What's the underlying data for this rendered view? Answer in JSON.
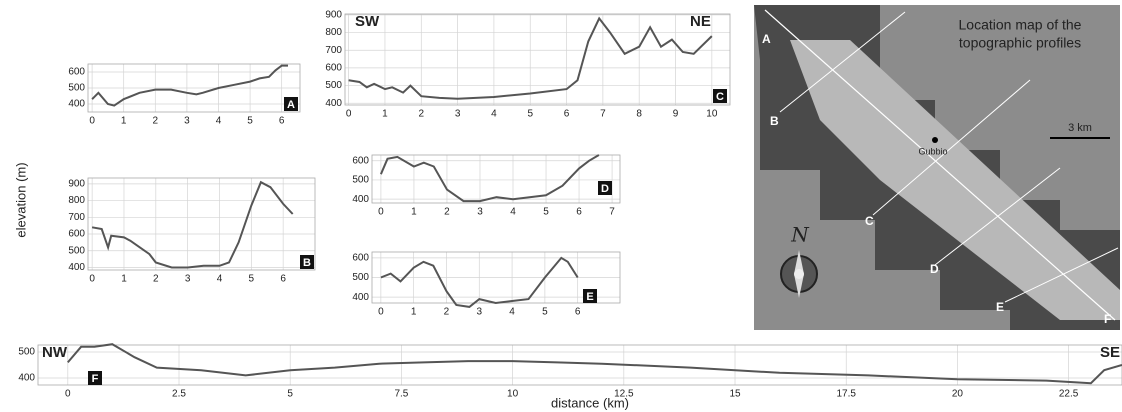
{
  "chart_data": [
    {
      "type": "line",
      "label": "A",
      "color": "#555555",
      "grid": true,
      "x": [
        0,
        0.2,
        0.5,
        0.7,
        1,
        1.5,
        2,
        2.5,
        3,
        3.3,
        3.5,
        4,
        4.5,
        5,
        5.3,
        5.6,
        5.8,
        6,
        6.2
      ],
      "values": [
        430,
        470,
        400,
        390,
        430,
        470,
        490,
        490,
        470,
        460,
        470,
        500,
        520,
        540,
        560,
        570,
        610,
        640,
        640
      ],
      "xlim": [
        -0.13,
        6.58
      ],
      "ylim": [
        350,
        650
      ],
      "xticks": [
        0,
        1,
        2,
        3,
        4,
        5,
        6
      ],
      "yticks": [
        400,
        500,
        600
      ]
    },
    {
      "type": "line",
      "label": "B",
      "color": "#555555",
      "grid": true,
      "x": [
        0,
        0.3,
        0.5,
        0.6,
        1,
        1.2,
        1.5,
        1.8,
        2,
        2.5,
        3,
        3.5,
        4,
        4.3,
        4.6,
        5,
        5.3,
        5.6,
        6,
        6.3
      ],
      "values": [
        640,
        630,
        520,
        590,
        580,
        560,
        520,
        480,
        430,
        400,
        400,
        410,
        410,
        430,
        550,
        770,
        910,
        880,
        780,
        720
      ],
      "xlim": [
        -0.13,
        7
      ],
      "ylim": [
        385,
        935
      ],
      "xticks": [
        0,
        1,
        2,
        3,
        4,
        5,
        6
      ],
      "yticks": [
        400,
        500,
        600,
        700,
        800,
        900
      ]
    },
    {
      "type": "line",
      "label": "C",
      "left_label": "SW",
      "right_label": "NE",
      "color": "#555555",
      "grid": true,
      "x": [
        0,
        0.3,
        0.5,
        0.7,
        1,
        1.2,
        1.5,
        1.7,
        2,
        2.5,
        3,
        4,
        5,
        6,
        6.3,
        6.6,
        6.9,
        7.2,
        7.6,
        8,
        8.3,
        8.6,
        8.9,
        9.2,
        9.5,
        10
      ],
      "values": [
        530,
        520,
        490,
        510,
        480,
        490,
        460,
        500,
        440,
        430,
        425,
        435,
        455,
        480,
        530,
        750,
        880,
        800,
        680,
        720,
        830,
        720,
        760,
        690,
        680,
        780
      ],
      "xlim": [
        -0.1,
        10.5
      ],
      "ylim": [
        390,
        905
      ],
      "xticks": [
        0,
        1,
        2,
        3,
        4,
        5,
        6,
        7,
        8,
        9,
        10
      ],
      "yticks": [
        400,
        500,
        600,
        700,
        800,
        900
      ]
    },
    {
      "type": "line",
      "label": "D",
      "color": "#555555",
      "grid": true,
      "x": [
        0,
        0.2,
        0.5,
        1,
        1.3,
        1.6,
        2,
        2.5,
        3,
        3.5,
        4,
        5,
        5.5,
        6,
        6.3,
        6.6
      ],
      "values": [
        530,
        610,
        620,
        570,
        590,
        570,
        450,
        390,
        390,
        410,
        400,
        420,
        470,
        560,
        600,
        630
      ],
      "xlim": [
        -0.27,
        7.24
      ],
      "ylim": [
        380,
        630
      ],
      "xticks": [
        0,
        1,
        2,
        3,
        4,
        5,
        6,
        7
      ],
      "yticks": [
        400,
        500,
        600
      ]
    },
    {
      "type": "line",
      "label": "E",
      "color": "#555555",
      "grid": true,
      "x": [
        0,
        0.3,
        0.6,
        1,
        1.3,
        1.6,
        2,
        2.3,
        2.7,
        3,
        3.5,
        4,
        4.5,
        5,
        5.5,
        5.7,
        6
      ],
      "values": [
        500,
        520,
        480,
        550,
        580,
        560,
        430,
        360,
        350,
        390,
        370,
        380,
        390,
        500,
        600,
        580,
        500
      ],
      "xlim": [
        -0.27,
        7.29
      ],
      "ylim": [
        370,
        630
      ],
      "xticks": [
        0,
        1,
        2,
        3,
        4,
        5,
        6
      ],
      "yticks": [
        400,
        500,
        600
      ]
    },
    {
      "type": "line",
      "label": "F",
      "left_label": "NW",
      "right_label": "SE",
      "color": "#555555",
      "grid": true,
      "x": [
        0,
        0.3,
        0.6,
        1,
        1.5,
        2,
        3,
        4,
        5,
        6,
        7,
        8,
        9,
        10,
        11,
        12,
        14,
        16,
        18,
        20,
        22,
        23,
        23.3,
        23.7
      ],
      "values": [
        460,
        520,
        520,
        530,
        480,
        440,
        430,
        410,
        430,
        440,
        455,
        460,
        465,
        465,
        460,
        455,
        440,
        420,
        410,
        395,
        390,
        380,
        430,
        450
      ],
      "xlim": [
        -0.67,
        23.7
      ],
      "ylim": [
        373,
        527
      ],
      "xticks": [
        0,
        2.5,
        5,
        7.5,
        10,
        12.5,
        15,
        17.5,
        20,
        22.5
      ],
      "yticks": [
        400,
        500
      ]
    }
  ],
  "figure": {
    "y_label": "elevation (m)",
    "x_label": "distance (km)"
  },
  "map": {
    "title": [
      "Location map of the",
      "topographic profiles"
    ],
    "town": "Gubbio",
    "scale": "3 km",
    "north": "N",
    "profiles": [
      "A",
      "B",
      "C",
      "D",
      "E",
      "F"
    ]
  }
}
